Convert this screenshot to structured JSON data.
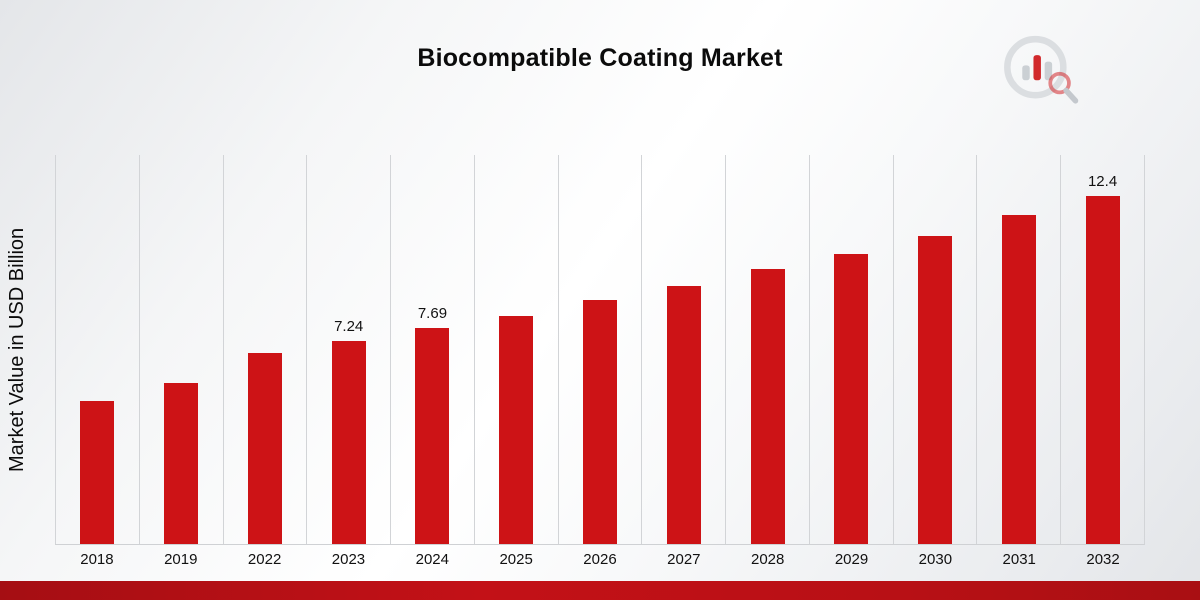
{
  "chart_data": {
    "type": "bar",
    "title": "Biocompatible Coating Market",
    "xlabel": "",
    "ylabel": "Market Value in USD Billion",
    "categories": [
      "2018",
      "2019",
      "2022",
      "2023",
      "2024",
      "2025",
      "2026",
      "2027",
      "2028",
      "2029",
      "2030",
      "2031",
      "2032"
    ],
    "values": [
      5.1,
      5.75,
      6.82,
      7.24,
      7.69,
      8.12,
      8.68,
      9.2,
      9.8,
      10.35,
      10.98,
      11.72,
      12.4
    ],
    "value_labels": [
      "",
      "",
      "",
      "7.24",
      "7.69",
      "",
      "",
      "",
      "",
      "",
      "",
      "",
      "12.4"
    ],
    "ylim": [
      0,
      13.9
    ],
    "bar_color": "#cd1316",
    "grid": "vertical",
    "legend": "none"
  },
  "branding": {
    "logo_name": "market-research-chart-logo",
    "accent_red": "#cd1316",
    "logo_gray": "#c9cdd2",
    "footer_color": "#b5101a"
  }
}
